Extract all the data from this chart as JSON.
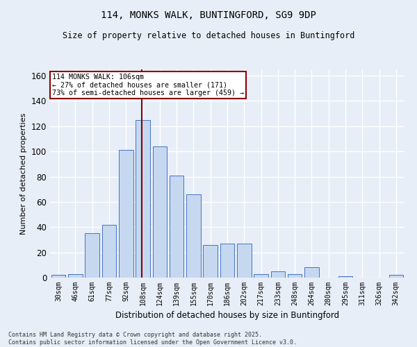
{
  "title1": "114, MONKS WALK, BUNTINGFORD, SG9 9DP",
  "title2": "Size of property relative to detached houses in Buntingford",
  "xlabel": "Distribution of detached houses by size in Buntingford",
  "ylabel": "Number of detached properties",
  "footer1": "Contains HM Land Registry data © Crown copyright and database right 2025.",
  "footer2": "Contains public sector information licensed under the Open Government Licence v3.0.",
  "annotation_title": "114 MONKS WALK: 106sqm",
  "annotation_line1": "← 27% of detached houses are smaller (171)",
  "annotation_line2": "73% of semi-detached houses are larger (459) →",
  "categories": [
    "30sqm",
    "46sqm",
    "61sqm",
    "77sqm",
    "92sqm",
    "108sqm",
    "124sqm",
    "139sqm",
    "155sqm",
    "170sqm",
    "186sqm",
    "202sqm",
    "217sqm",
    "233sqm",
    "248sqm",
    "264sqm",
    "280sqm",
    "295sqm",
    "311sqm",
    "326sqm",
    "342sqm"
  ],
  "values": [
    2,
    3,
    35,
    42,
    101,
    125,
    104,
    81,
    66,
    26,
    27,
    27,
    3,
    5,
    3,
    8,
    0,
    1,
    0,
    0,
    2
  ],
  "bar_color": "#c5d8f0",
  "bar_edge_color": "#4472c4",
  "line_color": "#8b0000",
  "annotation_box_color": "#ffffff",
  "annotation_box_edge": "#8b0000",
  "bg_color": "#e8eef7",
  "plot_bg_color": "#e8eef7",
  "grid_color": "#ffffff",
  "ylim": [
    0,
    165
  ],
  "yticks": [
    0,
    20,
    40,
    60,
    80,
    100,
    120,
    140,
    160
  ]
}
